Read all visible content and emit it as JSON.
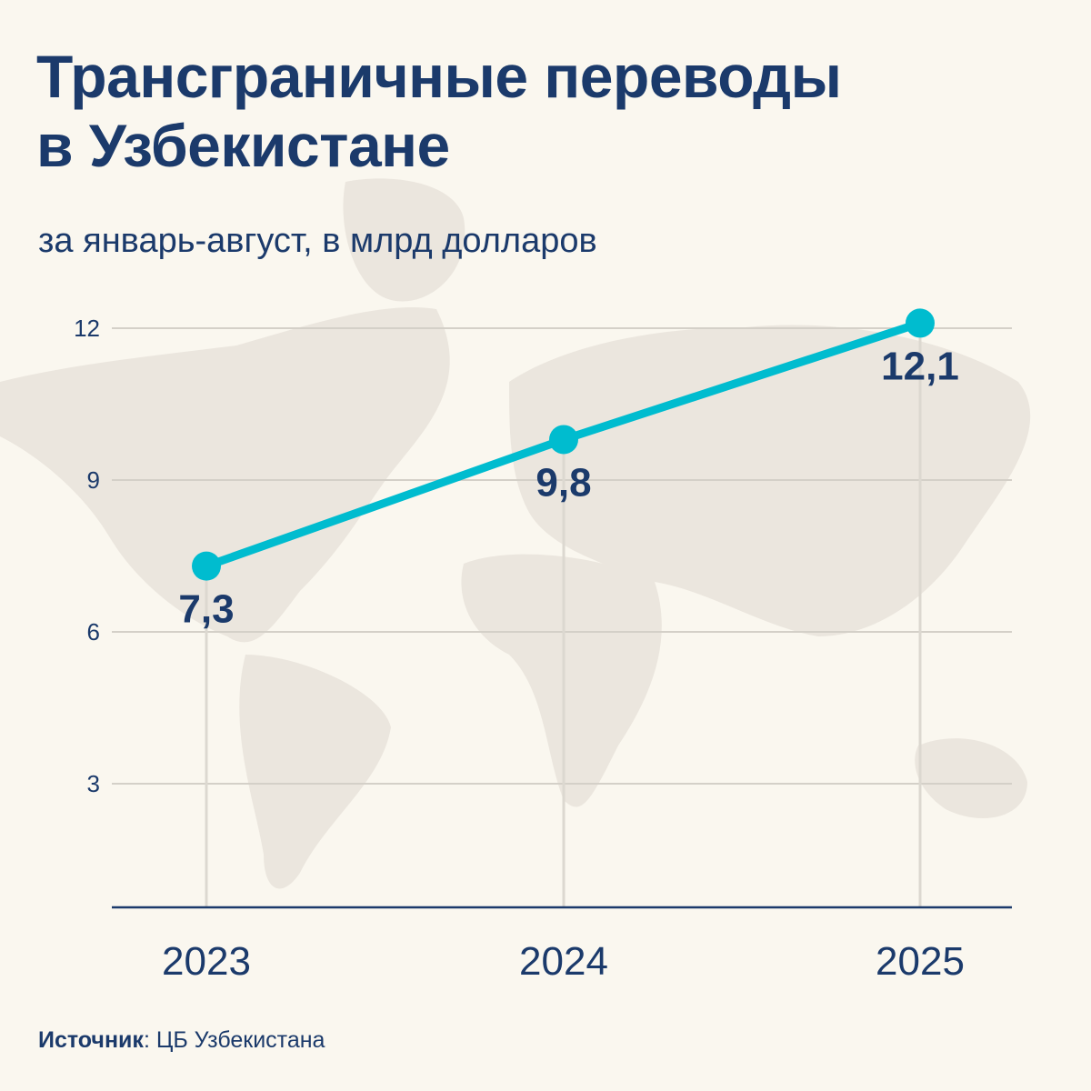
{
  "title_line1": "Трансграничные переводы",
  "title_line2": "в Узбекистане",
  "subtitle": "за январь-август, в млрд долларов",
  "source_label": "Источник",
  "source_value": ": ЦБ Узбекистана",
  "colors": {
    "line": "#00bccf",
    "text": "#1b3a6b",
    "grid": "#d4d0c8",
    "background": "#faf7ef"
  },
  "chart_data": {
    "type": "line",
    "title": "Трансграничные переводы в Узбекистане",
    "subtitle": "за январь-август, в млрд долларов",
    "categories": [
      "2023",
      "2024",
      "2025"
    ],
    "values": [
      7.3,
      9.8,
      12.1
    ],
    "data_labels": [
      "7,3",
      "9,8",
      "12,1"
    ],
    "yticks": [
      3,
      6,
      9,
      12
    ],
    "ytick_labels": [
      "3",
      "6",
      "9",
      "12"
    ],
    "ylim": [
      0.55,
      12.5
    ],
    "xlabel": "",
    "ylabel": "",
    "grid": true
  }
}
